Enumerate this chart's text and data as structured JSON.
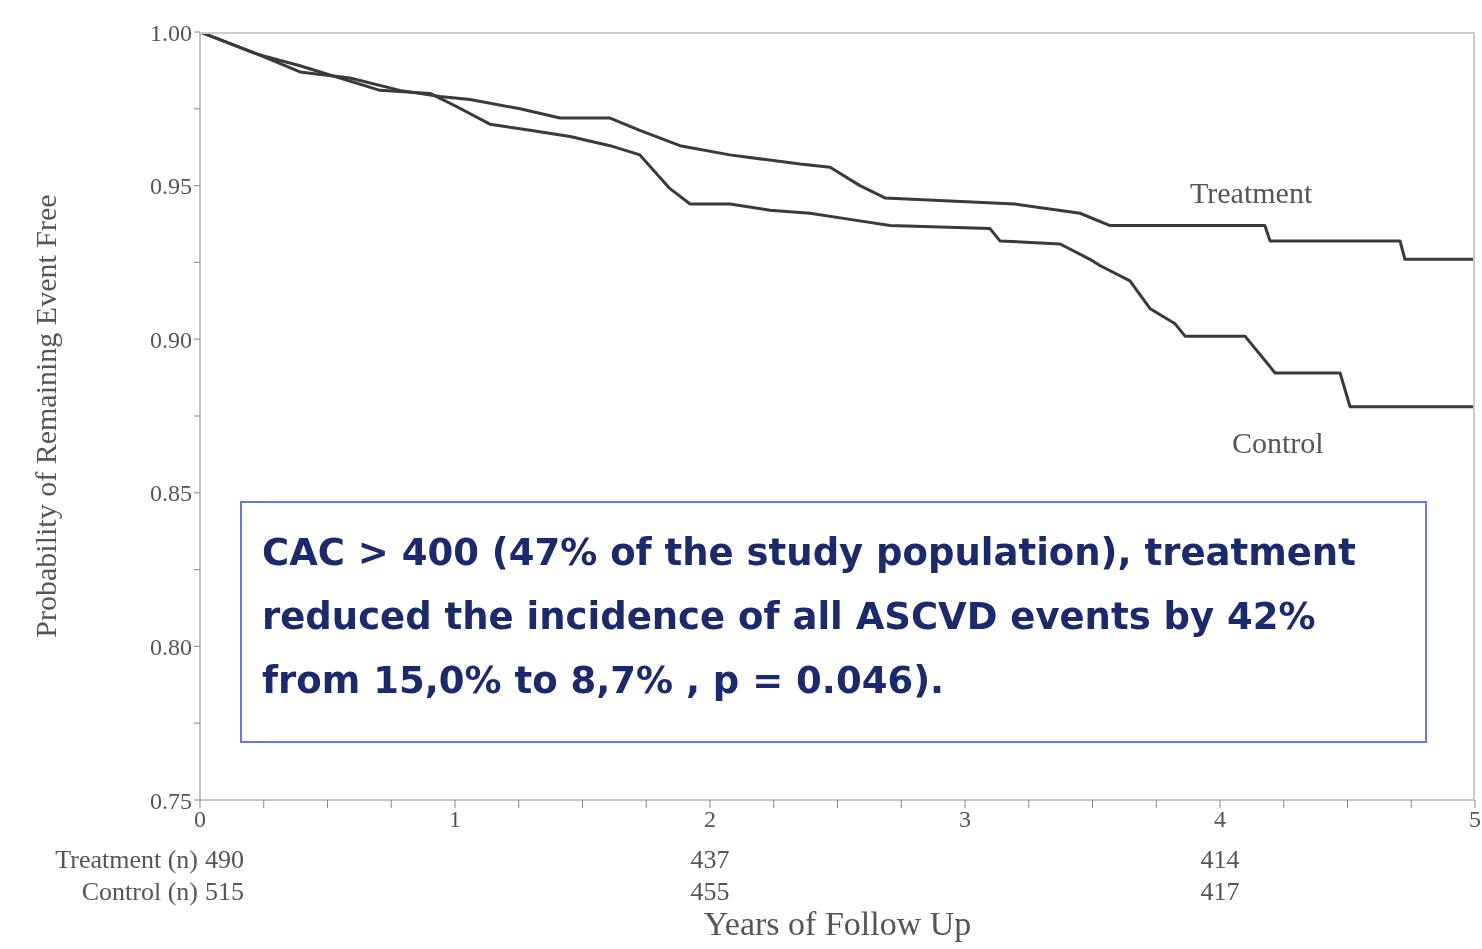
{
  "chart_data": {
    "type": "line",
    "xlabel": "Years of Follow Up",
    "ylabel": "Probability of Remaining Event Free",
    "xlim": [
      0,
      5
    ],
    "xticks": [
      0,
      {
        "value": 0.25,
        "label": null
      },
      {
        "value": 0.5,
        "label": null
      },
      {
        "value": 0.75,
        "label": null
      },
      1,
      {
        "value": 1.25,
        "label": null
      },
      {
        "value": 1.5,
        "label": null
      },
      {
        "value": 1.75,
        "label": null
      },
      2,
      {
        "value": 2.25,
        "label": null
      },
      {
        "value": 2.5,
        "label": null
      },
      {
        "value": 2.75,
        "label": null
      },
      3,
      {
        "value": 3.25,
        "label": null
      },
      {
        "value": 3.5,
        "label": null
      },
      {
        "value": 3.75,
        "label": null
      },
      4,
      {
        "value": 4.25,
        "label": null
      },
      {
        "value": 4.5,
        "label": null
      },
      {
        "value": 4.75,
        "label": null
      },
      5
    ],
    "ylim": [
      0.75,
      1.0
    ],
    "yticks": [
      {
        "value": 0.75,
        "label": "0.75"
      },
      {
        "value": 0.775,
        "label": null
      },
      {
        "value": 0.8,
        "label": "0.80"
      },
      {
        "value": 0.825,
        "label": null
      },
      {
        "value": 0.85,
        "label": "0.85"
      },
      {
        "value": 0.875,
        "label": null
      },
      {
        "value": 0.9,
        "label": "0.90"
      },
      {
        "value": 0.925,
        "label": null
      },
      {
        "value": 0.95,
        "label": "0.95"
      },
      {
        "value": 0.975,
        "label": null
      },
      {
        "value": 1.0,
        "label": "1.00"
      }
    ],
    "line_style": "solid",
    "series": [
      {
        "name": "Treatment",
        "color": "#3a3a3a",
        "x": [
          0,
          0.235,
          0.392,
          0.588,
          0.784,
          0.941,
          1.059,
          1.255,
          1.412,
          1.608,
          1.725,
          1.882,
          2.078,
          2.353,
          2.471,
          2.588,
          2.686,
          2.941,
          3.196,
          3.451,
          3.569,
          4.176,
          4.196,
          4.706,
          4.725,
          5
        ],
        "values": [
          1.0,
          0.9925,
          0.987,
          0.985,
          0.981,
          0.979,
          0.978,
          0.975,
          0.972,
          0.972,
          0.968,
          0.963,
          0.96,
          0.957,
          0.956,
          0.95,
          0.946,
          0.945,
          0.944,
          0.941,
          0.937,
          0.937,
          0.932,
          0.932,
          0.926,
          0.926
        ]
      },
      {
        "name": "Control",
        "color": "#3a3a3a",
        "x": [
          0,
          0.235,
          0.392,
          0.706,
          0.902,
          1.0,
          1.137,
          1.294,
          1.451,
          1.608,
          1.725,
          1.843,
          1.922,
          2.078,
          2.235,
          2.392,
          2.549,
          2.706,
          3.098,
          3.137,
          3.373,
          3.49,
          3.529,
          3.647,
          3.725,
          3.824,
          3.863,
          4.098,
          4.216,
          4.471,
          4.51,
          5
        ],
        "values": [
          1.0,
          0.9925,
          0.989,
          0.981,
          0.98,
          0.976,
          0.97,
          0.968,
          0.966,
          0.963,
          0.96,
          0.949,
          0.944,
          0.944,
          0.942,
          0.941,
          0.939,
          0.937,
          0.936,
          0.932,
          0.931,
          0.926,
          0.924,
          0.919,
          0.91,
          0.905,
          0.901,
          0.901,
          0.889,
          0.889,
          0.878,
          0.878
        ]
      }
    ],
    "annotations": [
      "CAC > 400  (47% of  the study population), treatment reduced the incidence of all ASCVD events by 42% from 15,0% to 8,7% , p = 0.046).",
      "Treatment (n)",
      "Control (n)",
      "490",
      "437",
      "414",
      "515",
      "455",
      "417"
    ]
  }
}
